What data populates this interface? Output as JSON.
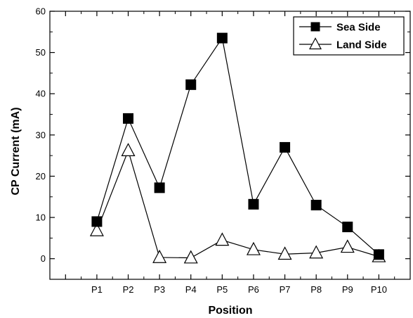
{
  "chart_data": {
    "type": "line",
    "title": "",
    "xlabel": "Position",
    "ylabel": "CP Current (mA)",
    "categories": [
      "P1",
      "P2",
      "P3",
      "P4",
      "P5",
      "P6",
      "P7",
      "P8",
      "P9",
      "P10"
    ],
    "ylim": [
      -5,
      60
    ],
    "yticks": [
      0,
      10,
      20,
      30,
      40,
      50,
      60
    ],
    "grid": false,
    "legend_position": "top-right",
    "series": [
      {
        "name": "Sea Side",
        "marker": "filled-square",
        "color": "#000000",
        "values": [
          9,
          34,
          17.2,
          42.2,
          53.5,
          13.2,
          27,
          13,
          7.7,
          1
        ]
      },
      {
        "name": "Land Side",
        "marker": "open-triangle",
        "color": "#000000",
        "values": [
          6.8,
          26.2,
          0.3,
          0.2,
          4.5,
          2.2,
          1.1,
          1.4,
          2.8,
          0.5
        ]
      }
    ]
  }
}
